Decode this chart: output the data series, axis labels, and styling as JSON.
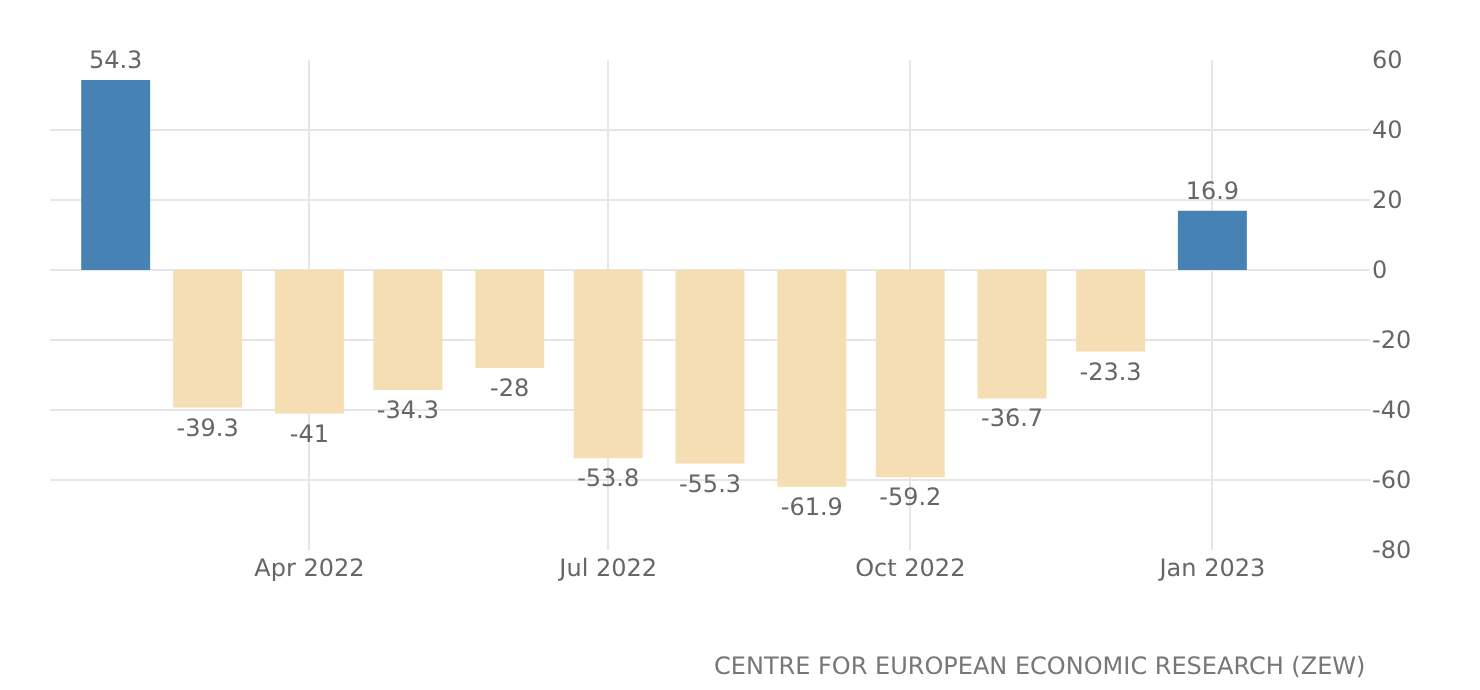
{
  "chart_data": {
    "type": "bar",
    "x": [
      "2022-02",
      "2022-03",
      "2022-04",
      "2022-05",
      "2022-06",
      "2022-07",
      "2022-08",
      "2022-09",
      "2022-10",
      "2022-11",
      "2022-12",
      "2023-01"
    ],
    "values": [
      54.3,
      -39.3,
      -41,
      -34.3,
      -28,
      -53.8,
      -55.3,
      -61.9,
      -59.2,
      -36.7,
      -23.3,
      16.9
    ],
    "colors": [
      "#4682b4",
      "#f5deb3",
      "#f5deb3",
      "#f5deb3",
      "#f5deb3",
      "#f5deb3",
      "#f5deb3",
      "#f5deb3",
      "#f5deb3",
      "#f5deb3",
      "#f5deb3",
      "#4682b4"
    ],
    "xlim": [
      "2022-01-12",
      "2023-02-18"
    ],
    "xticks": [
      {
        "value": "2022-04",
        "label": "Apr 2022"
      },
      {
        "value": "2022-07",
        "label": "Jul 2022"
      },
      {
        "value": "2022-10",
        "label": "Oct 2022"
      },
      {
        "value": "2023-01",
        "label": "Jan 2023"
      }
    ],
    "ylim": [
      -80,
      60
    ],
    "yticks": [
      -80,
      -60,
      -40,
      -20,
      0,
      20,
      40,
      60
    ],
    "grid": true,
    "data_labels": true,
    "annotations": [
      "CENTRE FOR EUROPEAN ECONOMIC RESEARCH (ZEW)"
    ]
  }
}
